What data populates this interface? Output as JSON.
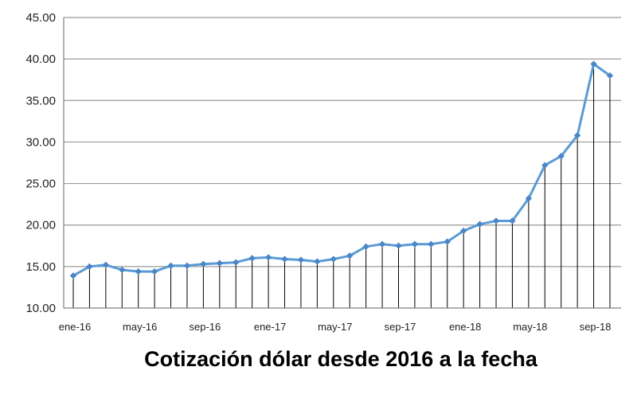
{
  "chart_data": {
    "type": "line",
    "title": "Cotización dólar desde 2016 a la fecha",
    "xlabel": "",
    "ylabel": "",
    "ylim": [
      10,
      45
    ],
    "yticks": [
      "10.00",
      "15.00",
      "20.00",
      "25.00",
      "30.00",
      "35.00",
      "40.00",
      "45.00"
    ],
    "x_tick_labels": [
      "ene-16",
      "may-16",
      "sep-16",
      "ene-17",
      "may-17",
      "sep-17",
      "ene-18",
      "may-18",
      "sep-18"
    ],
    "grid": "horizontal",
    "legend": "none",
    "drop_lines": true,
    "x": [
      "ene-16",
      "feb-16",
      "mar-16",
      "abr-16",
      "may-16",
      "jun-16",
      "jul-16",
      "ago-16",
      "sep-16",
      "oct-16",
      "nov-16",
      "dic-16",
      "ene-17",
      "feb-17",
      "mar-17",
      "abr-17",
      "may-17",
      "jun-17",
      "jul-17",
      "ago-17",
      "sep-17",
      "oct-17",
      "nov-17",
      "dic-17",
      "ene-18",
      "feb-18",
      "mar-18",
      "abr-18",
      "may-18",
      "jun-18",
      "jul-18",
      "ago-18",
      "sep-18",
      "oct-18"
    ],
    "series": [
      {
        "values": [
          13.9,
          15.0,
          15.2,
          14.6,
          14.4,
          14.4,
          15.1,
          15.1,
          15.3,
          15.4,
          15.5,
          16.0,
          16.1,
          15.9,
          15.8,
          15.6,
          15.9,
          16.3,
          17.4,
          17.7,
          17.5,
          17.7,
          17.7,
          18.0,
          19.3,
          20.1,
          20.5,
          20.5,
          23.2,
          27.2,
          28.3,
          30.8,
          39.4,
          38.0
        ]
      }
    ],
    "colors": {
      "line": "#5b9bd5",
      "marker": "#4a86c8",
      "grid": "#9a9a9a",
      "drop_line": "#000000",
      "axis": "#808080"
    }
  }
}
